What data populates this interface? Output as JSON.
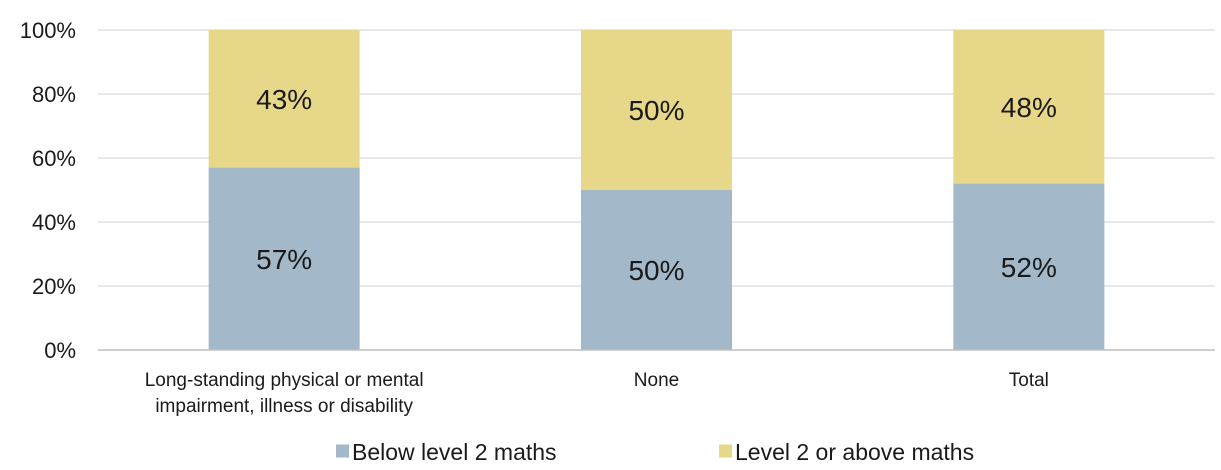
{
  "chart_data": {
    "type": "bar",
    "stacked": true,
    "categories": [
      [
        "Long-standing physical or mental",
        "impairment, illness or disability"
      ],
      [
        "None"
      ],
      [
        "Total"
      ]
    ],
    "series": [
      {
        "name": "Below level 2 maths",
        "color": "#a3b8c8",
        "values": [
          57,
          50,
          52
        ],
        "labels": [
          "57%",
          "50%",
          "52%"
        ]
      },
      {
        "name": "Level 2 or above maths",
        "color": "#e6d888",
        "values": [
          43,
          50,
          48
        ],
        "labels": [
          "43%",
          "50%",
          "48%"
        ]
      }
    ],
    "ylim": [
      0,
      100
    ],
    "yticks": [
      {
        "value": 0,
        "label": "0%"
      },
      {
        "value": 20,
        "label": "20%"
      },
      {
        "value": 40,
        "label": "40%"
      },
      {
        "value": 60,
        "label": "60%"
      },
      {
        "value": 80,
        "label": "80%"
      },
      {
        "value": 100,
        "label": "100%"
      }
    ],
    "grid": true,
    "gridColor": "#d9d9d9",
    "axisColor": "#bfbfbf",
    "legend": "bottom-center"
  }
}
